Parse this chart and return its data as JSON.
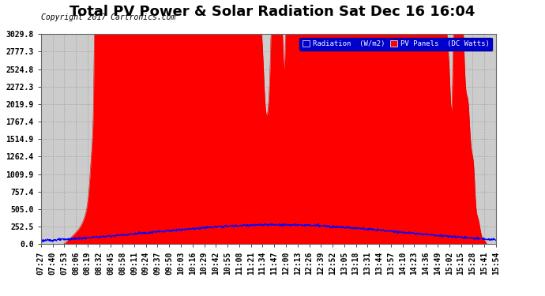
{
  "title": "Total PV Power & Solar Radiation Sat Dec 16 16:04",
  "copyright": "Copyright 2017 Cartronics.com",
  "legend_labels": [
    "Radiation  (W/m2)",
    "PV Panels  (DC Watts)"
  ],
  "background_color": "#ffffff",
  "plot_bg_color": "#cccccc",
  "grid_color": "#999999",
  "ytick_labels": [
    "0.0",
    "252.5",
    "505.0",
    "757.4",
    "1009.9",
    "1262.4",
    "1514.9",
    "1767.4",
    "2019.9",
    "2272.3",
    "2524.8",
    "2777.3",
    "3029.8"
  ],
  "ytick_values": [
    0.0,
    252.5,
    505.0,
    757.4,
    1009.9,
    1262.4,
    1514.9,
    1767.4,
    2019.9,
    2272.3,
    2524.8,
    2777.3,
    3029.8
  ],
  "ymax": 3029.8,
  "ymin": 0.0,
  "xtick_labels": [
    "07:27",
    "07:40",
    "07:53",
    "08:06",
    "08:19",
    "08:32",
    "08:45",
    "08:58",
    "09:11",
    "09:24",
    "09:37",
    "09:50",
    "10:03",
    "10:16",
    "10:29",
    "10:42",
    "10:55",
    "11:08",
    "11:21",
    "11:34",
    "11:47",
    "12:00",
    "12:13",
    "12:26",
    "12:39",
    "12:52",
    "13:05",
    "13:18",
    "13:31",
    "13:44",
    "13:57",
    "14:10",
    "14:23",
    "14:36",
    "14:49",
    "15:02",
    "15:15",
    "15:28",
    "15:41",
    "15:54"
  ],
  "title_fontsize": 13,
  "axis_fontsize": 7,
  "copyright_fontsize": 7,
  "n_points": 1200
}
